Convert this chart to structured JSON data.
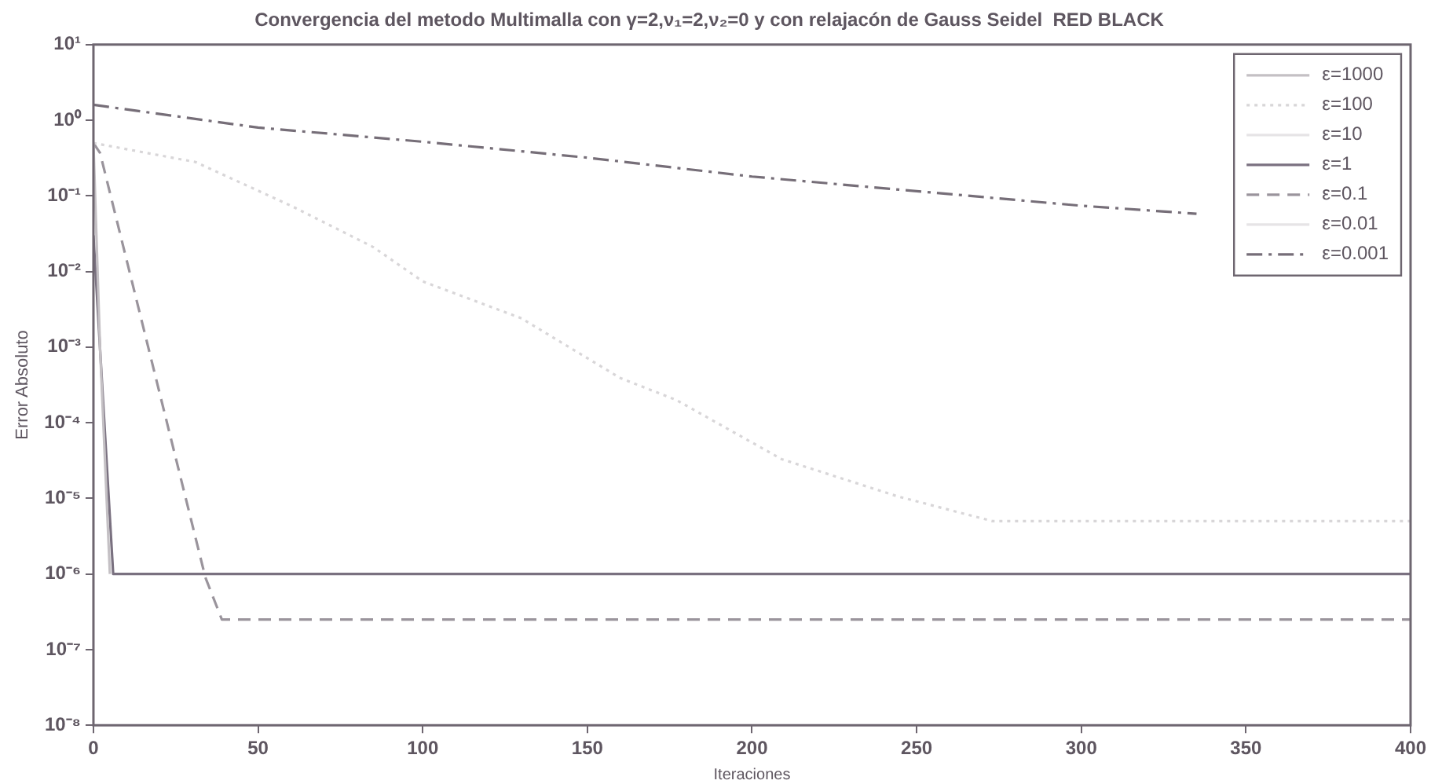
{
  "chart_data": {
    "type": "line",
    "title": "Convergencia del metodo Multimalla con γ=2,ν₁=2,ν₂=0 y con relajacón de Gauss Seidel  RED BLACK",
    "xlabel": "Iteraciones",
    "ylabel": "Error Absoluto",
    "log": "y",
    "grid": false,
    "legend": "top right",
    "marker": "none",
    "xlim": [
      0,
      400
    ],
    "xticks": [
      0,
      50,
      100,
      150,
      200,
      250,
      300,
      350,
      400
    ],
    "ylim": [
      1e-08,
      10
    ],
    "yticks": [
      {
        "value": 10,
        "label": "10¹"
      },
      {
        "value": 1,
        "label": "10⁰"
      },
      {
        "value": 0.1,
        "label": "10⁻¹"
      },
      {
        "value": 0.01,
        "label": "10⁻²"
      },
      {
        "value": 0.001,
        "label": "10⁻³"
      },
      {
        "value": 0.0001,
        "label": "10⁻⁴"
      },
      {
        "value": 1e-05,
        "label": "10⁻⁵"
      },
      {
        "value": 1e-06,
        "label": "10⁻⁶"
      },
      {
        "value": 1e-07,
        "label": "10⁻⁷"
      },
      {
        "value": 1e-08,
        "label": "10⁻⁸"
      }
    ],
    "series": [
      {
        "name": "ε=1000",
        "color": "#c4c0c4",
        "line_style": "solid",
        "x": [
          0,
          2,
          5
        ],
        "values": [
          0.5,
          0.001,
          1e-06
        ]
      },
      {
        "name": "ε=100",
        "color": "#d8d6d8",
        "line_style": "dotted",
        "x": [
          0,
          31,
          60,
          85,
          100,
          130,
          160,
          177,
          209,
          244,
          273,
          300,
          400
        ],
        "values": [
          0.5,
          0.28,
          0.074,
          0.021,
          0.0074,
          0.0024,
          0.00039,
          0.0002,
          3.3e-05,
          1.07e-05,
          5e-06,
          5e-06,
          5e-06
        ]
      },
      {
        "name": "ε=10",
        "color": "#e6e4e6",
        "line_style": "solid"
      },
      {
        "name": "ε=1",
        "color": "#7a7180",
        "line_style": "solid",
        "x": [
          0,
          6,
          400
        ],
        "values": [
          0.03,
          1e-06,
          1e-06
        ]
      },
      {
        "name": "ε=0.1",
        "color": "#9a949c",
        "line_style": "dashed",
        "x": [
          0,
          2,
          34,
          39,
          400
        ],
        "values": [
          0.5,
          0.37,
          9e-07,
          2.5e-07,
          2.5e-07
        ]
      },
      {
        "name": "ε=0.01",
        "color": "#e6e4e6",
        "line_style": "solid"
      },
      {
        "name": "ε=0.001",
        "color": "#766e78",
        "line_style": "dashdot",
        "x": [
          0,
          50,
          100,
          150,
          200,
          300,
          335
        ],
        "values": [
          1.6,
          0.8,
          0.52,
          0.32,
          0.18,
          0.074,
          0.058
        ]
      }
    ]
  }
}
